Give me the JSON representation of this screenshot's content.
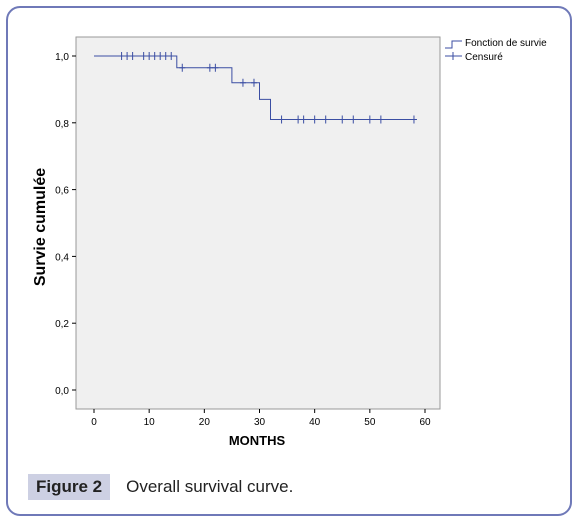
{
  "chart_data": {
    "type": "line",
    "xlabel": "MONTHS",
    "ylabel": "Survie cumulée",
    "xlim": [
      0,
      60
    ],
    "ylim": [
      0,
      1
    ],
    "x_ticks": [
      "0",
      "10",
      "20",
      "30",
      "40",
      "50",
      "60"
    ],
    "y_ticks": [
      "0,0",
      "0,2",
      "0,4",
      "0,6",
      "0,8",
      "1,0"
    ],
    "legend_position": "top-right",
    "grid": false,
    "series": [
      {
        "name": "Fonction de survie",
        "step": true,
        "x": [
          0,
          15,
          15,
          25,
          25,
          30,
          30,
          32,
          32,
          58
        ],
        "y": [
          1.0,
          1.0,
          0.965,
          0.965,
          0.92,
          0.92,
          0.87,
          0.87,
          0.81,
          0.81
        ],
        "color": "#3b4ea3"
      },
      {
        "name": "Censuré",
        "censored_x": [
          5,
          6,
          7,
          9,
          10,
          11,
          12,
          13,
          14,
          16,
          21,
          22,
          27,
          29,
          34,
          37,
          38,
          40,
          42,
          45,
          47,
          50,
          52,
          58
        ],
        "censored_y": [
          1.0,
          1.0,
          1.0,
          1.0,
          1.0,
          1.0,
          1.0,
          1.0,
          1.0,
          0.965,
          0.965,
          0.965,
          0.92,
          0.92,
          0.81,
          0.81,
          0.81,
          0.81,
          0.81,
          0.81,
          0.81,
          0.81,
          0.81,
          0.81
        ],
        "color": "#3b4ea3"
      }
    ]
  },
  "caption": {
    "label": "Figure 2",
    "text": "Overall survival curve."
  }
}
